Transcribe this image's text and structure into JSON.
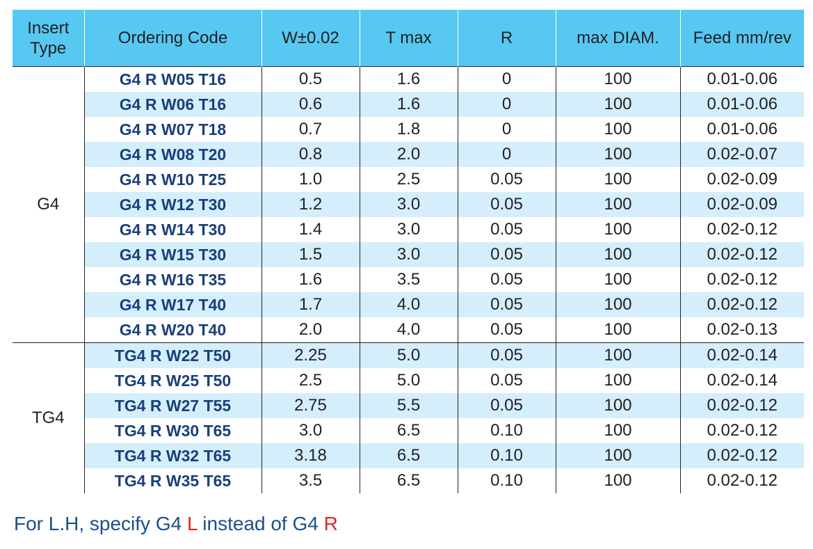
{
  "table": {
    "headers": [
      "Insert\nType",
      "Ordering Code",
      "W±0.02",
      "T max",
      "R",
      "max DIAM.",
      "Feed mm/rev"
    ],
    "header_insert_type_line1": "Insert",
    "header_insert_type_line2": "Type",
    "groups": [
      {
        "type": "G4",
        "rows": [
          {
            "code": "G4 R W05 T16",
            "w": "0.5",
            "t": "1.6",
            "r": "0",
            "diam": "100",
            "feed": "0.01-0.06"
          },
          {
            "code": "G4 R W06 T16",
            "w": "0.6",
            "t": "1.6",
            "r": "0",
            "diam": "100",
            "feed": "0.01-0.06"
          },
          {
            "code": "G4 R W07 T18",
            "w": "0.7",
            "t": "1.8",
            "r": "0",
            "diam": "100",
            "feed": "0.01-0.06"
          },
          {
            "code": "G4 R W08 T20",
            "w": "0.8",
            "t": "2.0",
            "r": "0",
            "diam": "100",
            "feed": "0.02-0.07"
          },
          {
            "code": "G4 R W10 T25",
            "w": "1.0",
            "t": "2.5",
            "r": "0.05",
            "diam": "100",
            "feed": "0.02-0.09"
          },
          {
            "code": "G4 R W12 T30",
            "w": "1.2",
            "t": "3.0",
            "r": "0.05",
            "diam": "100",
            "feed": "0.02-0.09"
          },
          {
            "code": "G4 R W14 T30",
            "w": "1.4",
            "t": "3.0",
            "r": "0.05",
            "diam": "100",
            "feed": "0.02-0.12"
          },
          {
            "code": "G4 R W15 T30",
            "w": "1.5",
            "t": "3.0",
            "r": "0.05",
            "diam": "100",
            "feed": "0.02-0.12"
          },
          {
            "code": "G4 R W16 T35",
            "w": "1.6",
            "t": "3.5",
            "r": "0.05",
            "diam": "100",
            "feed": "0.02-0.12"
          },
          {
            "code": "G4 R W17 T40",
            "w": "1.7",
            "t": "4.0",
            "r": "0.05",
            "diam": "100",
            "feed": "0.02-0.12"
          },
          {
            "code": "G4 R W20 T40",
            "w": "2.0",
            "t": "4.0",
            "r": "0.05",
            "diam": "100",
            "feed": "0.02-0.13"
          }
        ]
      },
      {
        "type": "TG4",
        "rows": [
          {
            "code": "TG4 R W22 T50",
            "w": "2.25",
            "t": "5.0",
            "r": "0.05",
            "diam": "100",
            "feed": "0.02-0.14"
          },
          {
            "code": "TG4 R W25 T50",
            "w": "2.5",
            "t": "5.0",
            "r": "0.05",
            "diam": "100",
            "feed": "0.02-0.14"
          },
          {
            "code": "TG4 R W27 T55",
            "w": "2.75",
            "t": "5.5",
            "r": "0.05",
            "diam": "100",
            "feed": "0.02-0.12"
          },
          {
            "code": "TG4 R W30 T65",
            "w": "3.0",
            "t": "6.5",
            "r": "0.10",
            "diam": "100",
            "feed": "0.02-0.12"
          },
          {
            "code": "TG4 R W32 T65",
            "w": "3.18",
            "t": "6.5",
            "r": "0.10",
            "diam": "100",
            "feed": "0.02-0.12"
          },
          {
            "code": "TG4 R W35 T65",
            "w": "3.5",
            "t": "6.5",
            "r": "0.10",
            "diam": "100",
            "feed": "0.02-0.12"
          }
        ]
      }
    ]
  },
  "footnote": {
    "prefix": "For L.H, specify G4 ",
    "left_letter": "L",
    "middle": " instead of G4 ",
    "right_letter": "R"
  },
  "colors": {
    "header_bg": "#57c8f2",
    "alt_row_bg": "#d4eefb",
    "code_text": "#1a3f7a",
    "footnote_text": "#1a4f8a",
    "footnote_highlight": "#e1241f"
  }
}
